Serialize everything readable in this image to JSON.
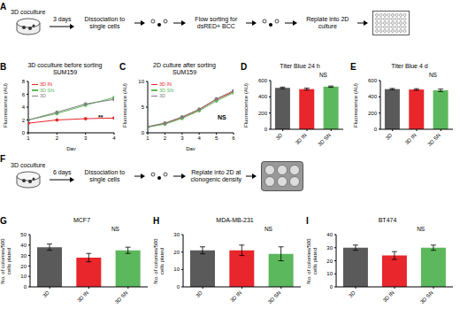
{
  "schematics": [
    {
      "panel": "A",
      "source": "3D coculture",
      "duration": "3 days",
      "steps": [
        "Dissociation to single cells",
        "Flow sorting for dsRED+ BCC",
        "Replate into 2D culture"
      ]
    },
    {
      "panel": "F",
      "source": "3D coculture",
      "duration": "6 days",
      "steps": [
        "Dissociation to single cells",
        "Replate into 2D at clonogenic density"
      ]
    }
  ],
  "chart_data": [
    {
      "panel": "B",
      "type": "line",
      "title": "3D coculture before sorting",
      "subtitle": "SUM159",
      "xlabel": "Day",
      "ylabel": "Fluorescence (AU)",
      "x": [
        1,
        2,
        3,
        4
      ],
      "xlim": [
        1,
        4
      ],
      "xticks": [
        1,
        2,
        3,
        4
      ],
      "ylim": [
        0,
        8
      ],
      "yticks": [
        0,
        2,
        4,
        6,
        8
      ],
      "marker": "circle",
      "legend": "upper left",
      "annotation": "**",
      "series": [
        {
          "name": "3D IN",
          "color": "#e8262b",
          "values": [
            1.5,
            2.0,
            2.2,
            2.3
          ]
        },
        {
          "name": "3D SN",
          "color": "#5cb85c",
          "values": [
            2.0,
            3.0,
            4.3,
            5.5
          ]
        },
        {
          "name": "3D",
          "color": "#7f7f7f",
          "values": [
            2.0,
            3.2,
            4.5,
            5.2
          ]
        }
      ]
    },
    {
      "panel": "C",
      "type": "line",
      "title": "2D culture after sorting",
      "subtitle": "SUM159",
      "xlabel": "Day",
      "ylabel": "Fluorescence (AU)",
      "x": [
        1,
        2,
        3,
        4,
        5,
        6
      ],
      "xlim": [
        1,
        6
      ],
      "xticks": [
        1,
        2,
        3,
        4,
        5,
        6
      ],
      "ylim": [
        0,
        10
      ],
      "yticks": [
        0,
        5,
        10
      ],
      "marker": "circle",
      "legend": "upper left",
      "annotation": "NS",
      "series": [
        {
          "name": "3D IN",
          "color": "#e8262b",
          "values": [
            1.2,
            1.8,
            3.0,
            4.5,
            6.5,
            8.0
          ]
        },
        {
          "name": "3D SN",
          "color": "#5cb85c",
          "values": [
            1.1,
            1.7,
            2.8,
            4.3,
            6.2,
            7.8
          ]
        },
        {
          "name": "3D",
          "color": "#7f7f7f",
          "values": [
            1.2,
            1.9,
            3.1,
            4.6,
            6.6,
            8.2
          ]
        }
      ]
    },
    {
      "panel": "D",
      "type": "bar",
      "title": "Titer Blue 24 h",
      "ylabel": "Fluorescence (AU)",
      "categories": [
        "3D",
        "3D IN",
        "3D SN"
      ],
      "values": [
        510,
        495,
        525
      ],
      "errors": [
        10,
        12,
        8
      ],
      "colors": [
        "#5a5a5a",
        "#e8262b",
        "#5cb85c"
      ],
      "ylim": [
        0,
        600
      ],
      "yticks": [
        0,
        200,
        400,
        600
      ],
      "annotation": "NS"
    },
    {
      "panel": "E",
      "type": "bar",
      "title": "Titer Blue 4 d",
      "ylabel": "Fluorescence (AU)",
      "categories": [
        "3D",
        "3D IN",
        "3D SN"
      ],
      "values": [
        495,
        490,
        480
      ],
      "errors": [
        8,
        10,
        15
      ],
      "colors": [
        "#5a5a5a",
        "#e8262b",
        "#5cb85c"
      ],
      "ylim": [
        0,
        600
      ],
      "yticks": [
        0,
        200,
        400,
        600
      ],
      "annotation": "NS"
    },
    {
      "panel": "G",
      "type": "bar",
      "title": "MCF7",
      "ylabel": "No. of colonies/500 cells plated",
      "categories": [
        "3D",
        "3D IN",
        "3D SN"
      ],
      "values": [
        38,
        28,
        35
      ],
      "errors": [
        3,
        4,
        3
      ],
      "colors": [
        "#5a5a5a",
        "#e8262b",
        "#5cb85c"
      ],
      "ylim": [
        0,
        50
      ],
      "yticks": [
        0,
        10,
        20,
        30,
        40,
        50
      ],
      "annotation": "NS"
    },
    {
      "panel": "H",
      "type": "bar",
      "title": "MDA-MB-231",
      "ylabel": "No. of colonies/500 cells plated",
      "categories": [
        "3D",
        "3D IN",
        "3D SN"
      ],
      "values": [
        21,
        21,
        19
      ],
      "errors": [
        2,
        3,
        4
      ],
      "colors": [
        "#5a5a5a",
        "#e8262b",
        "#5cb85c"
      ],
      "ylim": [
        0,
        30
      ],
      "yticks": [
        0,
        10,
        20,
        30
      ],
      "annotation": "NS"
    },
    {
      "panel": "I",
      "type": "bar",
      "title": "BT474",
      "ylabel": "No. of colonies/500 cells plated",
      "categories": [
        "3D",
        "3D IN",
        "3D SN"
      ],
      "values": [
        30,
        24,
        30
      ],
      "errors": [
        2,
        3,
        2
      ],
      "colors": [
        "#5a5a5a",
        "#e8262b",
        "#5cb85c"
      ],
      "ylim": [
        0,
        40
      ],
      "yticks": [
        0,
        10,
        20,
        30,
        40
      ],
      "annotation": "NS"
    }
  ]
}
